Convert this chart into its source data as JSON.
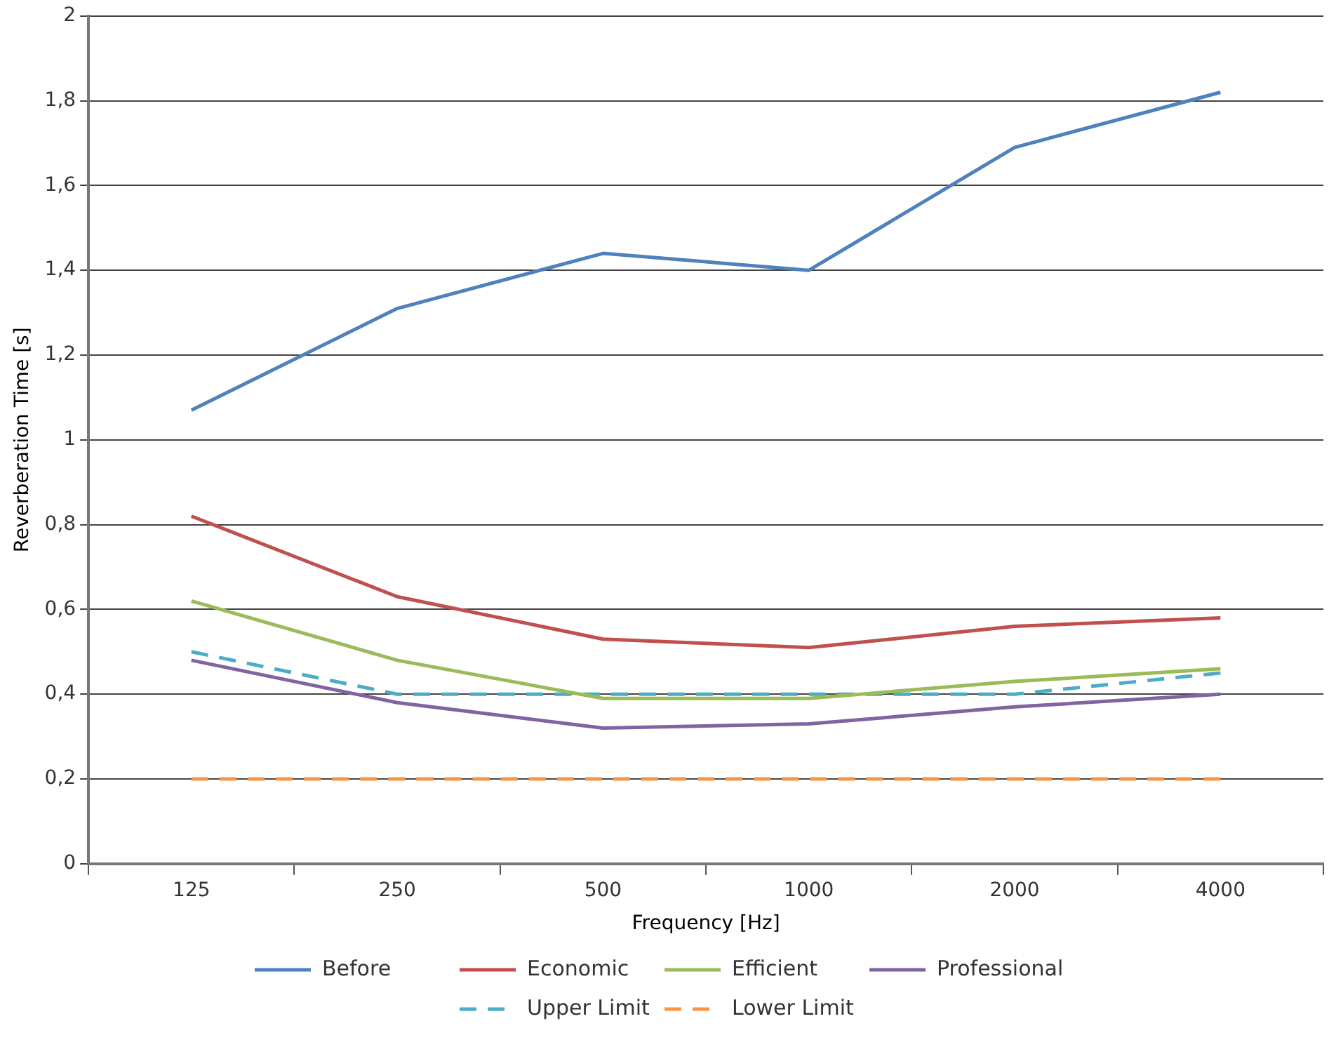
{
  "chart_data": {
    "type": "line",
    "xlabel": "Frequency [Hz]",
    "ylabel": "Reverberation Time [s]",
    "categories": [
      "125",
      "250",
      "500",
      "1000",
      "2000",
      "4000"
    ],
    "series": [
      {
        "name": "Before",
        "color": "#4f81bd",
        "values": [
          1.07,
          1.31,
          1.44,
          1.4,
          1.69,
          1.82
        ]
      },
      {
        "name": "Economic",
        "color": "#c0504d",
        "values": [
          0.82,
          0.63,
          0.53,
          0.51,
          0.56,
          0.58
        ]
      },
      {
        "name": "Efficient",
        "color": "#9bbb59",
        "values": [
          0.62,
          0.48,
          0.39,
          0.39,
          0.43,
          0.46
        ]
      },
      {
        "name": "Professional",
        "color": "#8064a2",
        "values": [
          0.48,
          0.38,
          0.32,
          0.33,
          0.37,
          0.4
        ]
      },
      {
        "name": "Upper Limit",
        "color": "#4bacc6",
        "values": [
          0.5,
          0.4,
          0.4,
          0.4,
          0.4,
          0.45
        ],
        "line_style": "dashed"
      },
      {
        "name": "Lower Limit",
        "color": "#f79646",
        "values": [
          0.2,
          0.2,
          0.2,
          0.2,
          0.2,
          0.2
        ],
        "line_style": "dashed"
      }
    ],
    "ylim": [
      0,
      2
    ],
    "yticks": [
      0,
      {
        "value": 0.2,
        "label": "0,2"
      },
      {
        "value": 0.4,
        "label": "0,4"
      },
      {
        "value": 0.6,
        "label": "0,6"
      },
      {
        "value": 0.8,
        "label": "0,8"
      },
      1,
      {
        "value": 1.2,
        "label": "1,2"
      },
      {
        "value": 1.4,
        "label": "1,4"
      },
      {
        "value": 1.6,
        "label": "1,6"
      },
      {
        "value": 1.8,
        "label": "1,8"
      },
      2
    ],
    "grid": "y",
    "legend": "bottom",
    "marker": "none",
    "line_style": "solid"
  }
}
